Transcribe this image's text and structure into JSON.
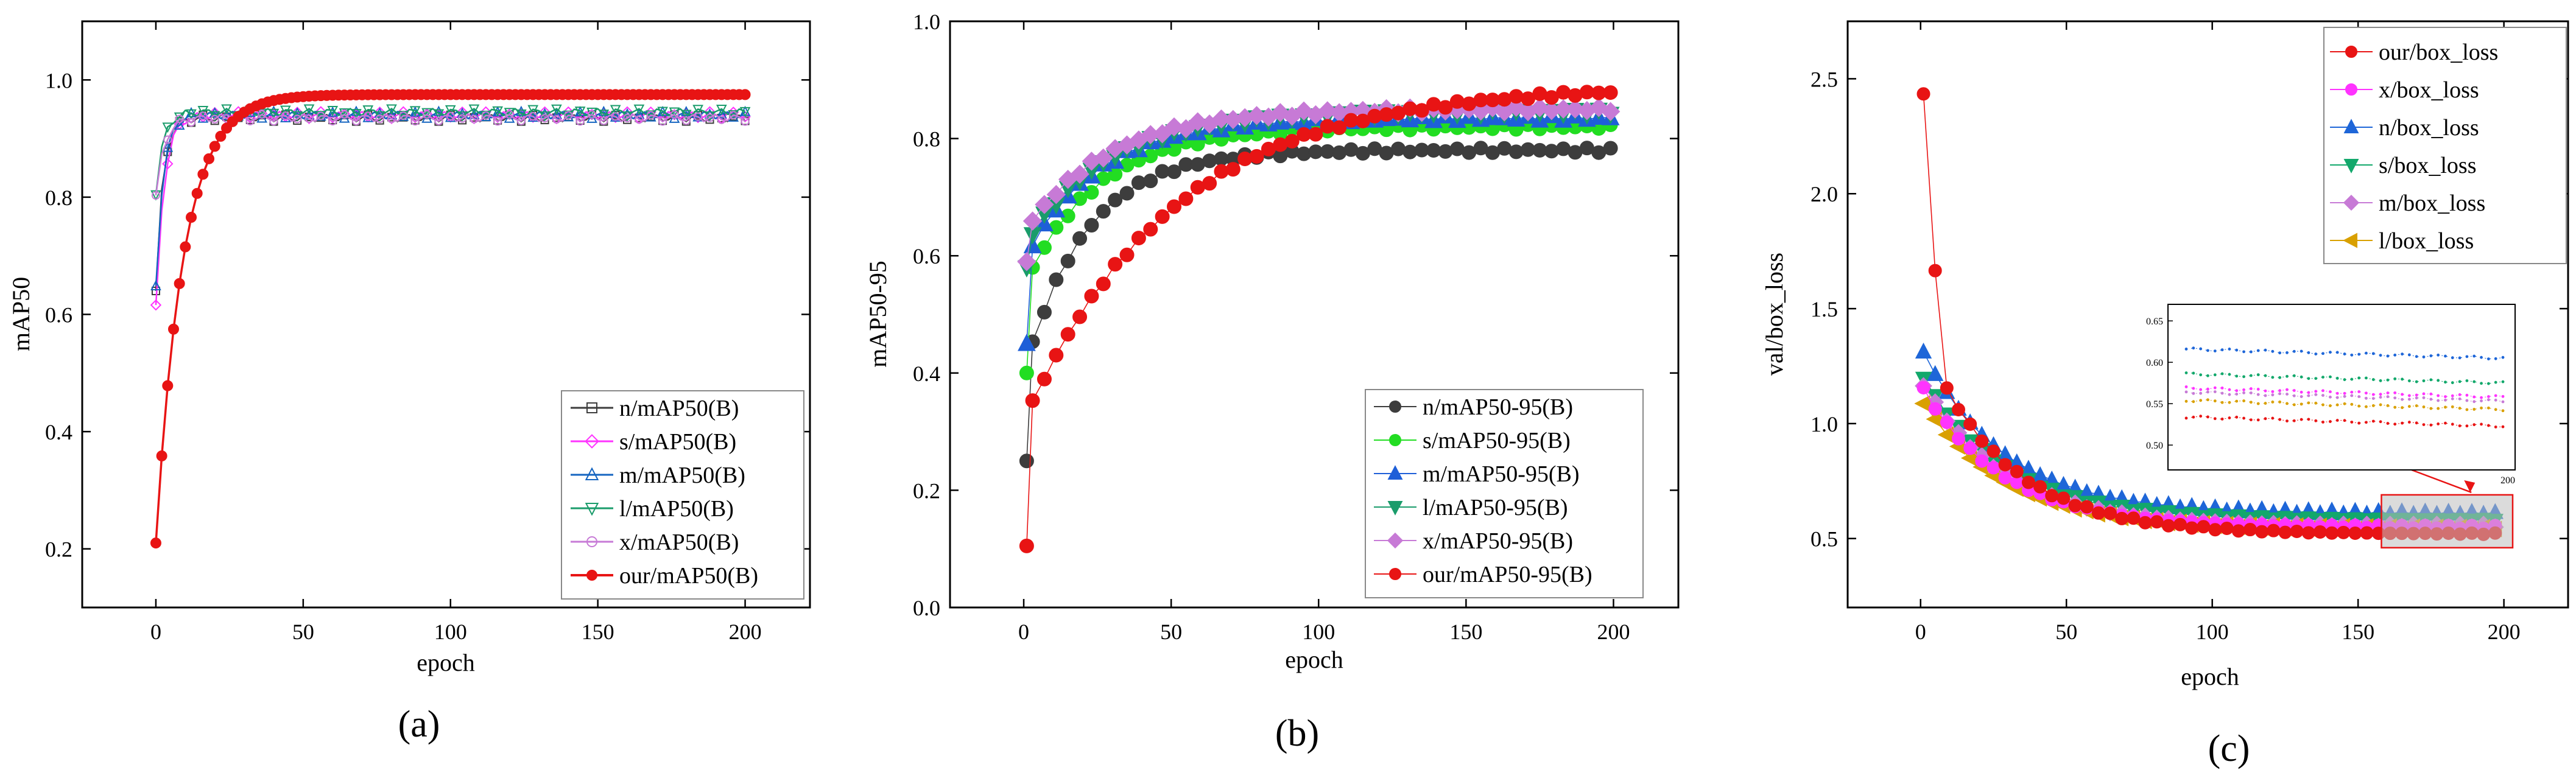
{
  "colors": {
    "n": "#3d3d3d",
    "s": "#ff33ff",
    "m": "#1565c0",
    "l": "#1a9c6b",
    "x": "#c77ad6",
    "our": "#e81414",
    "n_b": "#3d3d3d",
    "s_b": "#22dd22",
    "m_b": "#1e5fd8",
    "l_b": "#1a9c6b",
    "x_b": "#c77ad6",
    "our_b": "#e81414",
    "n_c": "#1e66d8",
    "s_c": "#12a86b",
    "m_c": "#c77ad6",
    "l_c": "#d9a000",
    "x_c": "#ff33ff",
    "our_c": "#e81414"
  },
  "chart_data": [
    {
      "type": "line",
      "panel_label": "(a)",
      "title": "",
      "xlabel": "epoch",
      "ylabel": "mAP50",
      "xlim": [
        -25,
        222
      ],
      "ylim": [
        0.1,
        1.1
      ],
      "xticks": [
        0,
        50,
        100,
        150,
        200
      ],
      "xtick_labels": [
        "0",
        "50",
        "100",
        "150",
        "200"
      ],
      "yticks": [
        0.2,
        0.4,
        0.6,
        0.8,
        1.0
      ],
      "ytick_labels": [
        "0.2",
        "0.4",
        "0.6",
        "0.8",
        "1.0"
      ],
      "legend_position": "bottom-right",
      "series": [
        {
          "name": "n/mAP50(B)",
          "color_key": "n",
          "marker": "square",
          "start": 0.64,
          "plateau": 0.935,
          "rate": 0.35
        },
        {
          "name": "s/mAP50(B)",
          "color_key": "s",
          "marker": "diamond",
          "start": 0.61,
          "plateau": 0.94,
          "rate": 0.3
        },
        {
          "name": "m/mAP50(B)",
          "color_key": "m",
          "marker": "triangle-up",
          "start": 0.65,
          "plateau": 0.94,
          "rate": 0.33
        },
        {
          "name": "l/mAP50(B)",
          "color_key": "l",
          "marker": "triangle-down",
          "start": 0.81,
          "plateau": 0.945,
          "rate": 0.32
        },
        {
          "name": "x/mAP50(B)",
          "color_key": "x",
          "marker": "circle",
          "start": 0.8,
          "plateau": 0.935,
          "rate": 0.3
        },
        {
          "name": "our/mAP50(B)",
          "color_key": "our",
          "marker": "circle",
          "filled": true,
          "start": 0.21,
          "plateau": 0.975,
          "rate": 0.09
        }
      ]
    },
    {
      "type": "scatter",
      "panel_label": "(b)",
      "title": "",
      "xlabel": "epoch",
      "ylabel": "mAP50-95",
      "xlim": [
        -25,
        222
      ],
      "ylim": [
        0.0,
        1.0
      ],
      "xticks": [
        0,
        50,
        100,
        150,
        200
      ],
      "xtick_labels": [
        "0",
        "50",
        "100",
        "150",
        "200"
      ],
      "yticks": [
        0.0,
        0.2,
        0.4,
        0.6,
        0.8,
        1.0
      ],
      "ytick_labels": [
        "0.0",
        "0.2",
        "0.4",
        "0.6",
        "0.8",
        "1.0"
      ],
      "legend_position": "bottom-right",
      "series": [
        {
          "name": "n/mAP50-95(B)",
          "color_key": "n_b",
          "marker": "circle",
          "start": 0.25,
          "plateau": 0.78,
          "rate": 0.06,
          "jump": 0.45
        },
        {
          "name": "s/mAP50-95(B)",
          "color_key": "s_b",
          "marker": "circle",
          "start": 0.4,
          "plateau": 0.82,
          "rate": 0.05,
          "jump": 0.58
        },
        {
          "name": "m/mAP50-95(B)",
          "color_key": "m_b",
          "marker": "triangle-up",
          "start": 0.45,
          "plateau": 0.835,
          "rate": 0.05,
          "jump": 0.62
        },
        {
          "name": "l/mAP50-95(B)",
          "color_key": "l_b",
          "marker": "triangle-down",
          "start": 0.58,
          "plateau": 0.845,
          "rate": 0.045,
          "jump": 0.64
        },
        {
          "name": "x/mAP50-95(B)",
          "color_key": "x_b",
          "marker": "diamond",
          "start": 0.59,
          "plateau": 0.85,
          "rate": 0.045,
          "jump": 0.66
        },
        {
          "name": "our/mAP50-95(B)",
          "color_key": "our_b",
          "marker": "circle",
          "start": 0.105,
          "plateau": 0.89,
          "rate": 0.025,
          "jump": 0.35
        }
      ]
    },
    {
      "type": "line",
      "panel_label": "(c)",
      "title": "",
      "xlabel": "epoch",
      "ylabel": "val/box_loss",
      "xlim": [
        -25,
        222
      ],
      "ylim": [
        0.2,
        2.75
      ],
      "xticks": [
        0,
        50,
        100,
        150,
        200
      ],
      "xtick_labels": [
        "0",
        "50",
        "100",
        "150",
        "200"
      ],
      "yticks": [
        0.5,
        1.0,
        1.5,
        2.0,
        2.5
      ],
      "ytick_labels": [
        "0.5",
        "1.0",
        "1.5",
        "2.0",
        "2.5"
      ],
      "legend_position": "top-right",
      "series": [
        {
          "name": "our/box_loss",
          "color_key": "our_c",
          "marker": "circle",
          "start": 2.43,
          "second": 1.67,
          "end": 0.52,
          "rate": 0.04
        },
        {
          "name": "x/box_loss",
          "color_key": "x_c",
          "marker": "circle",
          "start": 1.15,
          "end": 0.55,
          "rate": 0.04
        },
        {
          "name": "n/box_loss",
          "color_key": "n_c",
          "marker": "triangle-up",
          "start": 1.31,
          "end": 0.61,
          "rate": 0.04
        },
        {
          "name": "s/box_loss",
          "color_key": "s_c",
          "marker": "triangle-down",
          "start": 1.2,
          "end": 0.58,
          "rate": 0.04
        },
        {
          "name": "m/box_loss",
          "color_key": "m_c",
          "marker": "diamond",
          "start": 1.17,
          "end": 0.555,
          "rate": 0.04
        },
        {
          "name": "l/box_loss",
          "color_key": "l_c",
          "marker": "triangle-left",
          "start": 1.09,
          "end": 0.545,
          "rate": 0.04
        }
      ],
      "inset": {
        "region_x": [
          158,
          203
        ],
        "region_y": [
          0.46,
          0.69
        ],
        "yticks": [
          0.5,
          0.55,
          0.6,
          0.65
        ],
        "ytick_labels": [
          "0.50",
          "0.55",
          "0.60",
          "0.65"
        ],
        "xtick_label": "200",
        "ylim": [
          0.47,
          0.67
        ],
        "levels": [
          {
            "color_key": "n_c",
            "value": 0.61
          },
          {
            "color_key": "s_c",
            "value": 0.58
          },
          {
            "color_key": "x_c",
            "value": 0.563
          },
          {
            "color_key": "m_c",
            "value": 0.558
          },
          {
            "color_key": "l_c",
            "value": 0.548
          },
          {
            "color_key": "our_c",
            "value": 0.528
          }
        ]
      }
    }
  ]
}
